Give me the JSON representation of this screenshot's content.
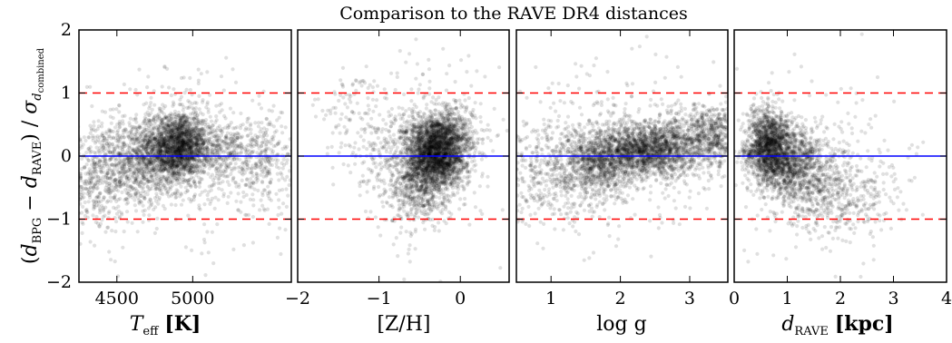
{
  "chart_data": {
    "title": "Comparison to the RAVE DR4 distances",
    "ylabel": {
      "open": "(",
      "d": "d",
      "sub1": "BPG",
      "minus": " − ",
      "sub2": "RAVE",
      "close": ") / ",
      "sigma": "σ",
      "d_sub": "d",
      "sub3": "combined"
    },
    "ylim": [
      -2,
      2
    ],
    "yticks": [
      -2,
      -1,
      0,
      1,
      2
    ],
    "ytick_labels": [
      "−2",
      "−1",
      "0",
      "1",
      "2"
    ],
    "reference_lines": [
      {
        "y": 1,
        "style": "dashed",
        "color": "#ff0000"
      },
      {
        "y": -1,
        "style": "dashed",
        "color": "#ff0000"
      },
      {
        "y": 0,
        "style": "solid",
        "color": "#0000ff"
      }
    ],
    "point_color": "#000000",
    "panels": [
      {
        "type": "scatter",
        "xlabel_main": "T",
        "xlabel_sub": "eff",
        "xlabel_unit": "[K]",
        "xlim": [
          4250,
          5650
        ],
        "xticks": [
          4500,
          5000
        ],
        "xtick_labels": [
          "4500",
          "5000"
        ],
        "density": [
          {
            "x": 4350,
            "y": -0.35,
            "sx": 120,
            "sy": 0.45,
            "n": 420
          },
          {
            "x": 4600,
            "y": -0.1,
            "sx": 120,
            "sy": 0.35,
            "n": 600
          },
          {
            "x": 4850,
            "y": 0.1,
            "sx": 110,
            "sy": 0.3,
            "n": 1500
          },
          {
            "x": 4950,
            "y": 0.2,
            "sx": 80,
            "sy": 0.22,
            "n": 700
          },
          {
            "x": 5200,
            "y": 0.05,
            "sx": 150,
            "sy": 0.28,
            "n": 550
          },
          {
            "x": 5500,
            "y": -0.15,
            "sx": 100,
            "sy": 0.4,
            "n": 200
          },
          {
            "x": 4950,
            "y": 0.0,
            "sx": 350,
            "sy": 0.75,
            "n": 300
          }
        ]
      },
      {
        "type": "scatter",
        "xlabel_main": "[Z/H]",
        "xlim": [
          -2,
          0.6
        ],
        "xticks": [
          -2,
          -1,
          0
        ],
        "xtick_labels": [
          "−2",
          "−1",
          "0"
        ],
        "density": [
          {
            "x": -0.3,
            "y": 0.05,
            "sx": 0.18,
            "sy": 0.3,
            "n": 2400
          },
          {
            "x": -0.5,
            "y": -0.4,
            "sx": 0.15,
            "sy": 0.35,
            "n": 500
          },
          {
            "x": -0.1,
            "y": 0.3,
            "sx": 0.18,
            "sy": 0.25,
            "n": 500
          },
          {
            "x": -0.75,
            "y": -0.15,
            "sx": 0.25,
            "sy": 0.45,
            "n": 250
          },
          {
            "x": -1.4,
            "y": 0.7,
            "sx": 0.2,
            "sy": 0.35,
            "n": 80
          },
          {
            "x": -1.0,
            "y": 0.2,
            "sx": 0.3,
            "sy": 0.45,
            "n": 90
          },
          {
            "x": -0.4,
            "y": 0.0,
            "sx": 0.45,
            "sy": 0.8,
            "n": 200
          }
        ]
      },
      {
        "type": "scatter",
        "xlabel_main": "log g",
        "xlim": [
          0.5,
          3.55
        ],
        "xticks": [
          1,
          2,
          3
        ],
        "xtick_labels": [
          "1",
          "2",
          "3"
        ],
        "density": [
          {
            "x": 1.0,
            "y": -0.25,
            "sx": 0.35,
            "sy": 0.4,
            "n": 450
          },
          {
            "x": 1.7,
            "y": -0.1,
            "sx": 0.25,
            "sy": 0.28,
            "n": 900
          },
          {
            "x": 2.3,
            "y": 0.1,
            "sx": 0.3,
            "sy": 0.2,
            "n": 1300
          },
          {
            "x": 2.75,
            "y": 0.15,
            "sx": 0.2,
            "sy": 0.25,
            "n": 500
          },
          {
            "x": 3.3,
            "y": 0.3,
            "sx": 0.2,
            "sy": 0.25,
            "n": 600
          },
          {
            "x": 2.0,
            "y": 0.0,
            "sx": 0.8,
            "sy": 0.75,
            "n": 350
          }
        ]
      },
      {
        "type": "scatter",
        "xlabel_main": "d",
        "xlabel_sub": "RAVE",
        "xlabel_unit": "[kpc]",
        "xlim": [
          0,
          4
        ],
        "xticks": [
          0,
          1,
          2,
          3,
          4
        ],
        "xtick_labels": [
          "0",
          "1",
          "2",
          "3",
          "4"
        ],
        "density": [
          {
            "x": 0.65,
            "y": 0.15,
            "sx": 0.2,
            "sy": 0.3,
            "n": 1300
          },
          {
            "x": 1.0,
            "y": -0.05,
            "sx": 0.28,
            "sy": 0.3,
            "n": 900
          },
          {
            "x": 1.5,
            "y": -0.35,
            "sx": 0.35,
            "sy": 0.35,
            "n": 450
          },
          {
            "x": 2.3,
            "y": -0.6,
            "sx": 0.5,
            "sy": 0.35,
            "n": 250
          },
          {
            "x": 0.3,
            "y": 0.0,
            "sx": 0.08,
            "sy": 0.08,
            "n": 60
          },
          {
            "x": 1.5,
            "y": -0.2,
            "sx": 0.9,
            "sy": 0.7,
            "n": 250
          }
        ]
      }
    ]
  }
}
